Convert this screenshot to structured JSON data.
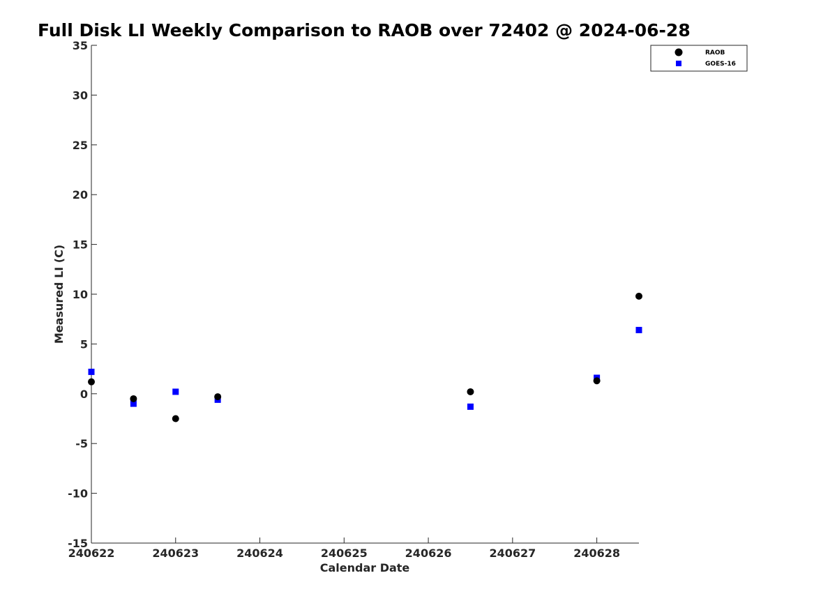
{
  "chart_data": {
    "type": "scatter",
    "title": "Full Disk LI Weekly Comparison to RAOB over 72402 @ 2024-06-28",
    "xlabel": "Calendar Date",
    "ylabel": "Measured LI (C)",
    "xlim": [
      "240622",
      "240628 12Z"
    ],
    "ylim": [
      -15,
      35
    ],
    "x_ticks": [
      "240622",
      "240623",
      "240624",
      "240625",
      "240626",
      "240627",
      "240628"
    ],
    "y_ticks": [
      "-15",
      "-10",
      "-5",
      "0",
      "5",
      "10",
      "15",
      "20",
      "25",
      "30",
      "35"
    ],
    "grid": false,
    "legend_position": "top-right",
    "series": [
      {
        "name": "RAOB",
        "marker": "circle",
        "color": "#000000",
        "x": [
          "240622 00Z",
          "240622 12Z",
          "240623 00Z",
          "240623 12Z",
          "240626 12Z",
          "240628 00Z",
          "240628 12Z"
        ],
        "y": [
          1.2,
          -0.5,
          -2.5,
          -0.3,
          0.2,
          1.3,
          9.8
        ]
      },
      {
        "name": "GOES-16",
        "marker": "square",
        "color": "#0000ff",
        "x": [
          "240622 00Z",
          "240622 12Z",
          "240623 00Z",
          "240623 12Z",
          "240626 12Z",
          "240628 00Z",
          "240628 12Z"
        ],
        "y": [
          2.2,
          -1.0,
          0.2,
          -0.6,
          -1.3,
          1.6,
          6.4
        ]
      }
    ]
  }
}
